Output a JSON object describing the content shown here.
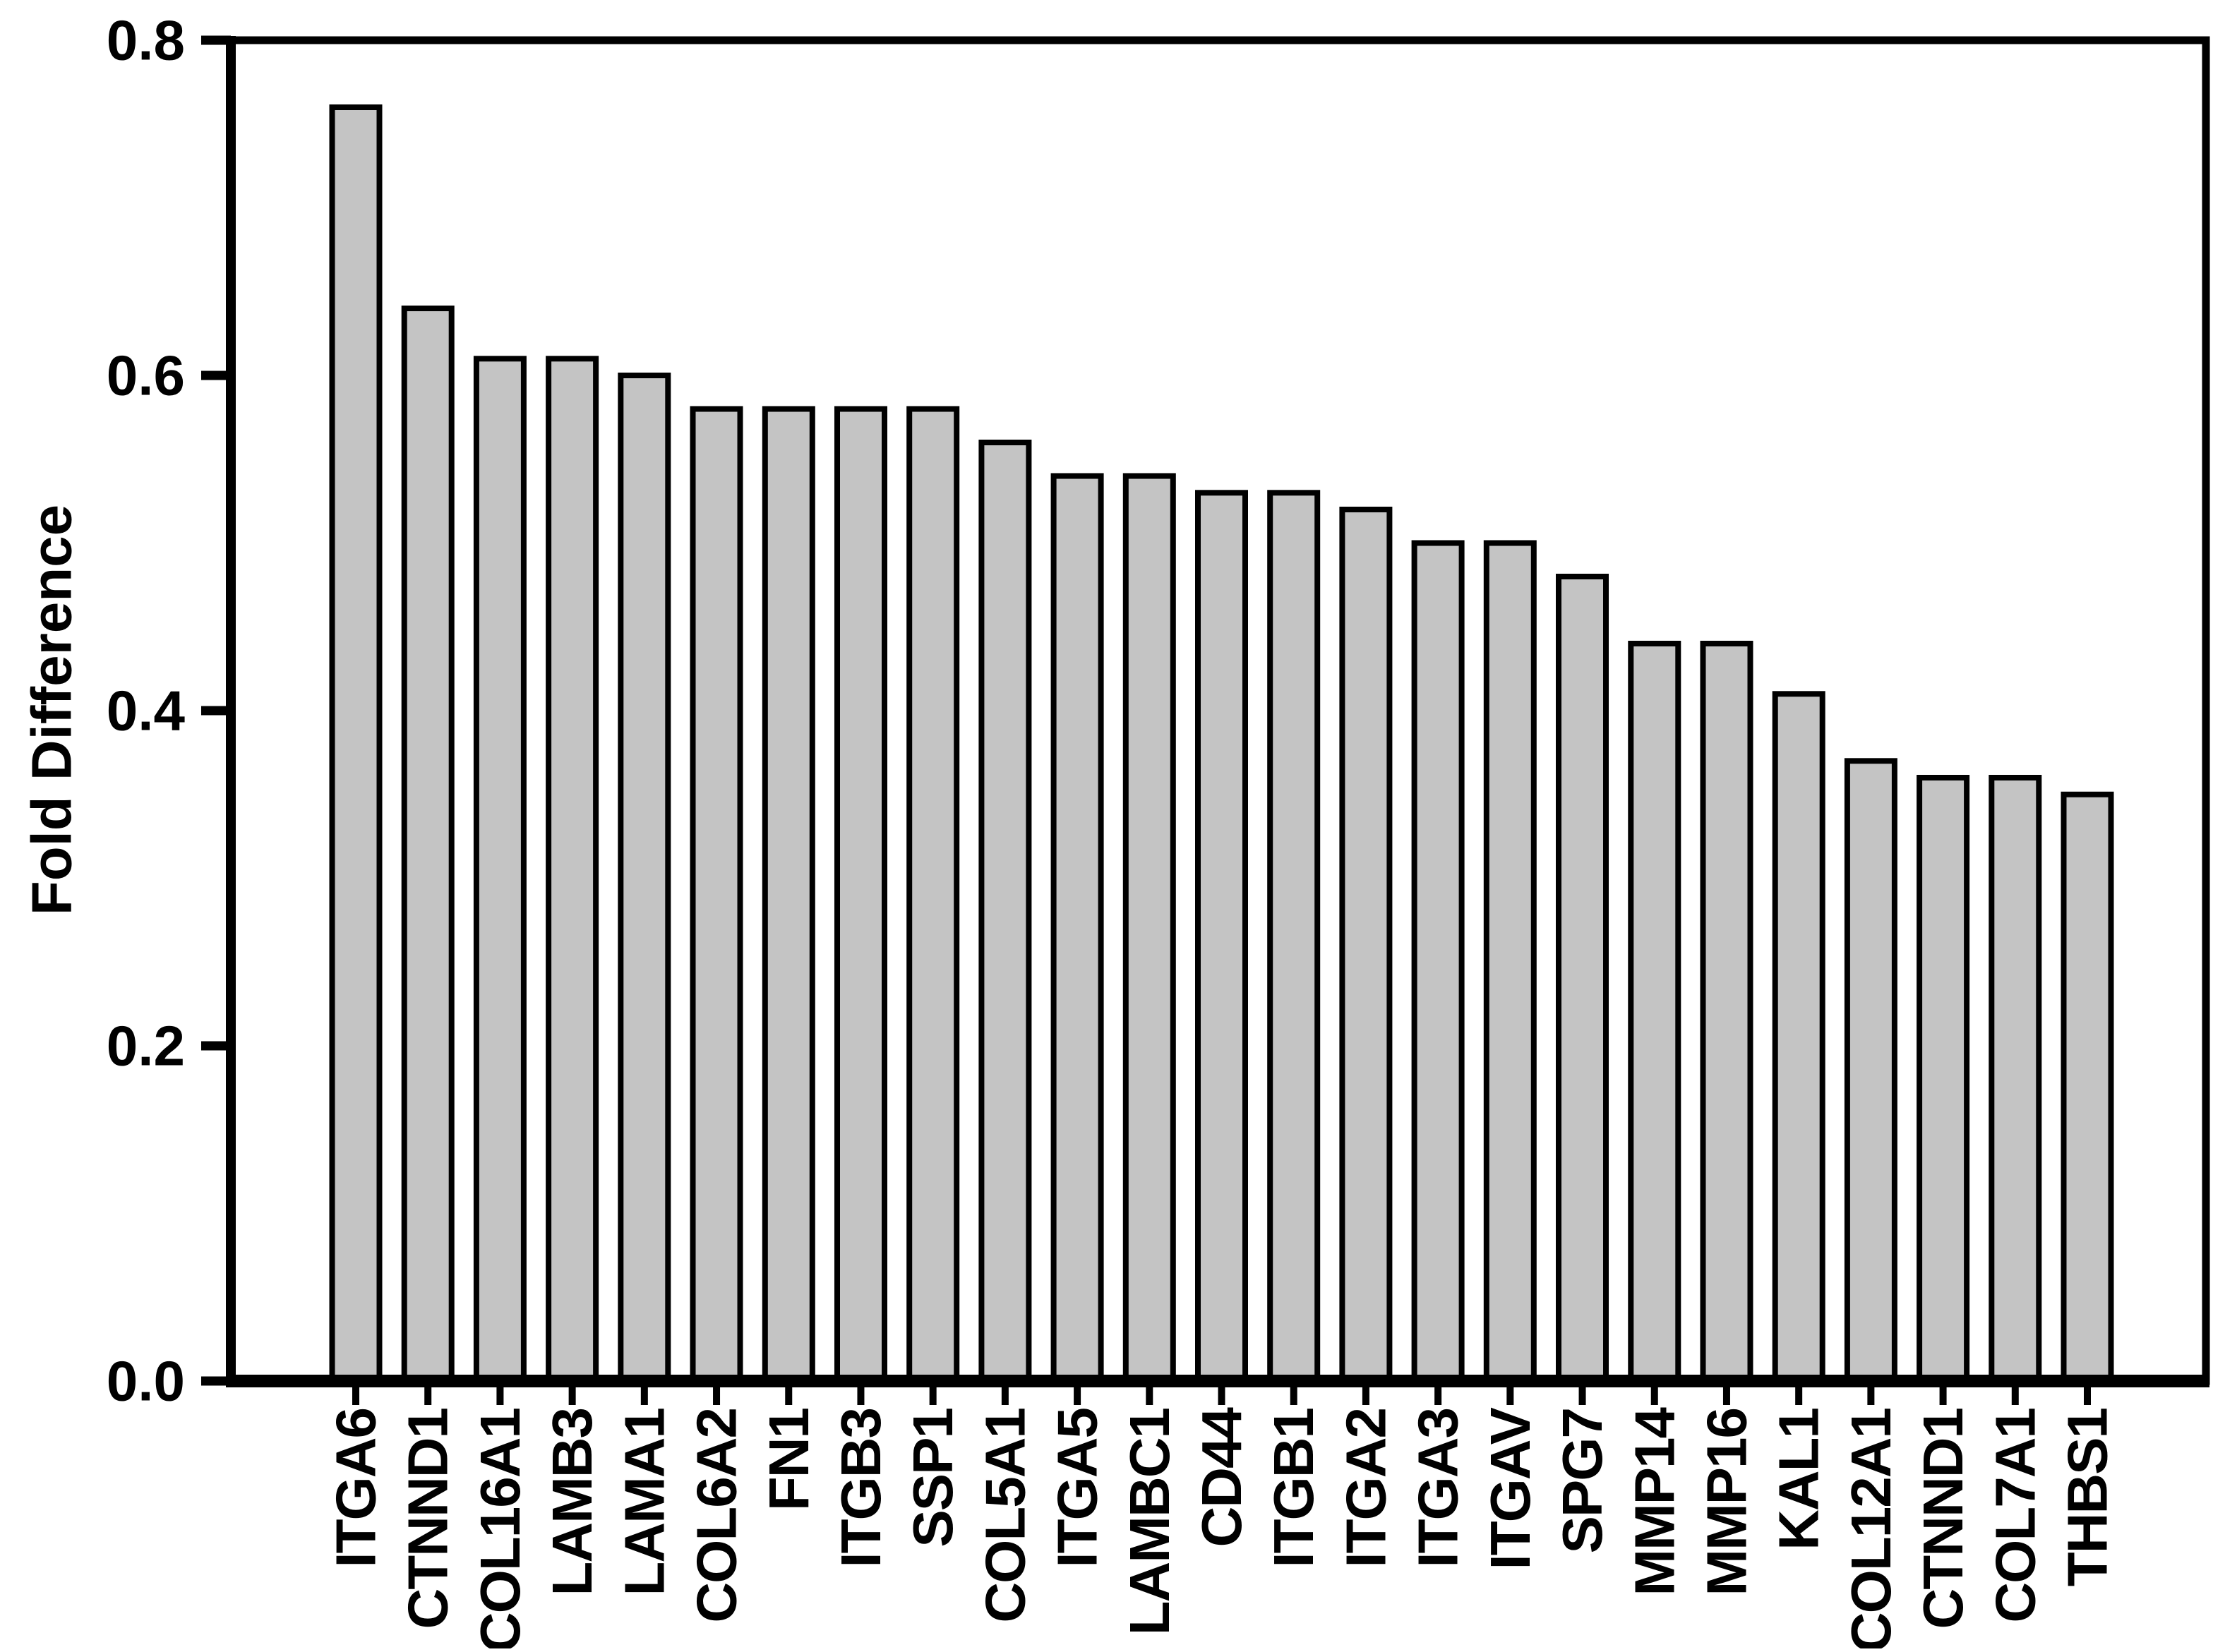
{
  "chart_data": {
    "type": "bar",
    "title": "",
    "xlabel": "",
    "ylabel": "Fold Difference",
    "categories": [
      "ITGA6",
      "CTNND1",
      "COL16A1",
      "LAMB3",
      "LAMA1",
      "COL6A2",
      "FN1",
      "ITGB3",
      "SSP1",
      "COL5A1",
      "ITGA5",
      "LAMBC1",
      "CD44",
      "ITGB1",
      "ITGA2",
      "ITGA3",
      "ITGAV",
      "SPG7",
      "MMP14",
      "MMP16",
      "KAL1",
      "COL12A1",
      "CTNND1",
      "COL7A1",
      "THBS1"
    ],
    "values": [
      0.76,
      0.64,
      0.61,
      0.61,
      0.6,
      0.58,
      0.58,
      0.58,
      0.58,
      0.56,
      0.54,
      0.54,
      0.53,
      0.53,
      0.52,
      0.5,
      0.5,
      0.48,
      0.44,
      0.44,
      0.41,
      0.37,
      0.36,
      0.36,
      0.35
    ],
    "ylim": [
      0.0,
      0.8
    ],
    "ytick_labels": [
      "0.0",
      "0.2",
      "0.4",
      "0.6",
      "0.8"
    ],
    "ytick_values": [
      0.0,
      0.2,
      0.4,
      0.6,
      0.8
    ],
    "grid": false,
    "legend_position": "none",
    "bar_fill_color": "#c4c4c4",
    "bar_edge_color": "#000000",
    "axis_color": "#000000",
    "background_color": "#ffffff"
  }
}
